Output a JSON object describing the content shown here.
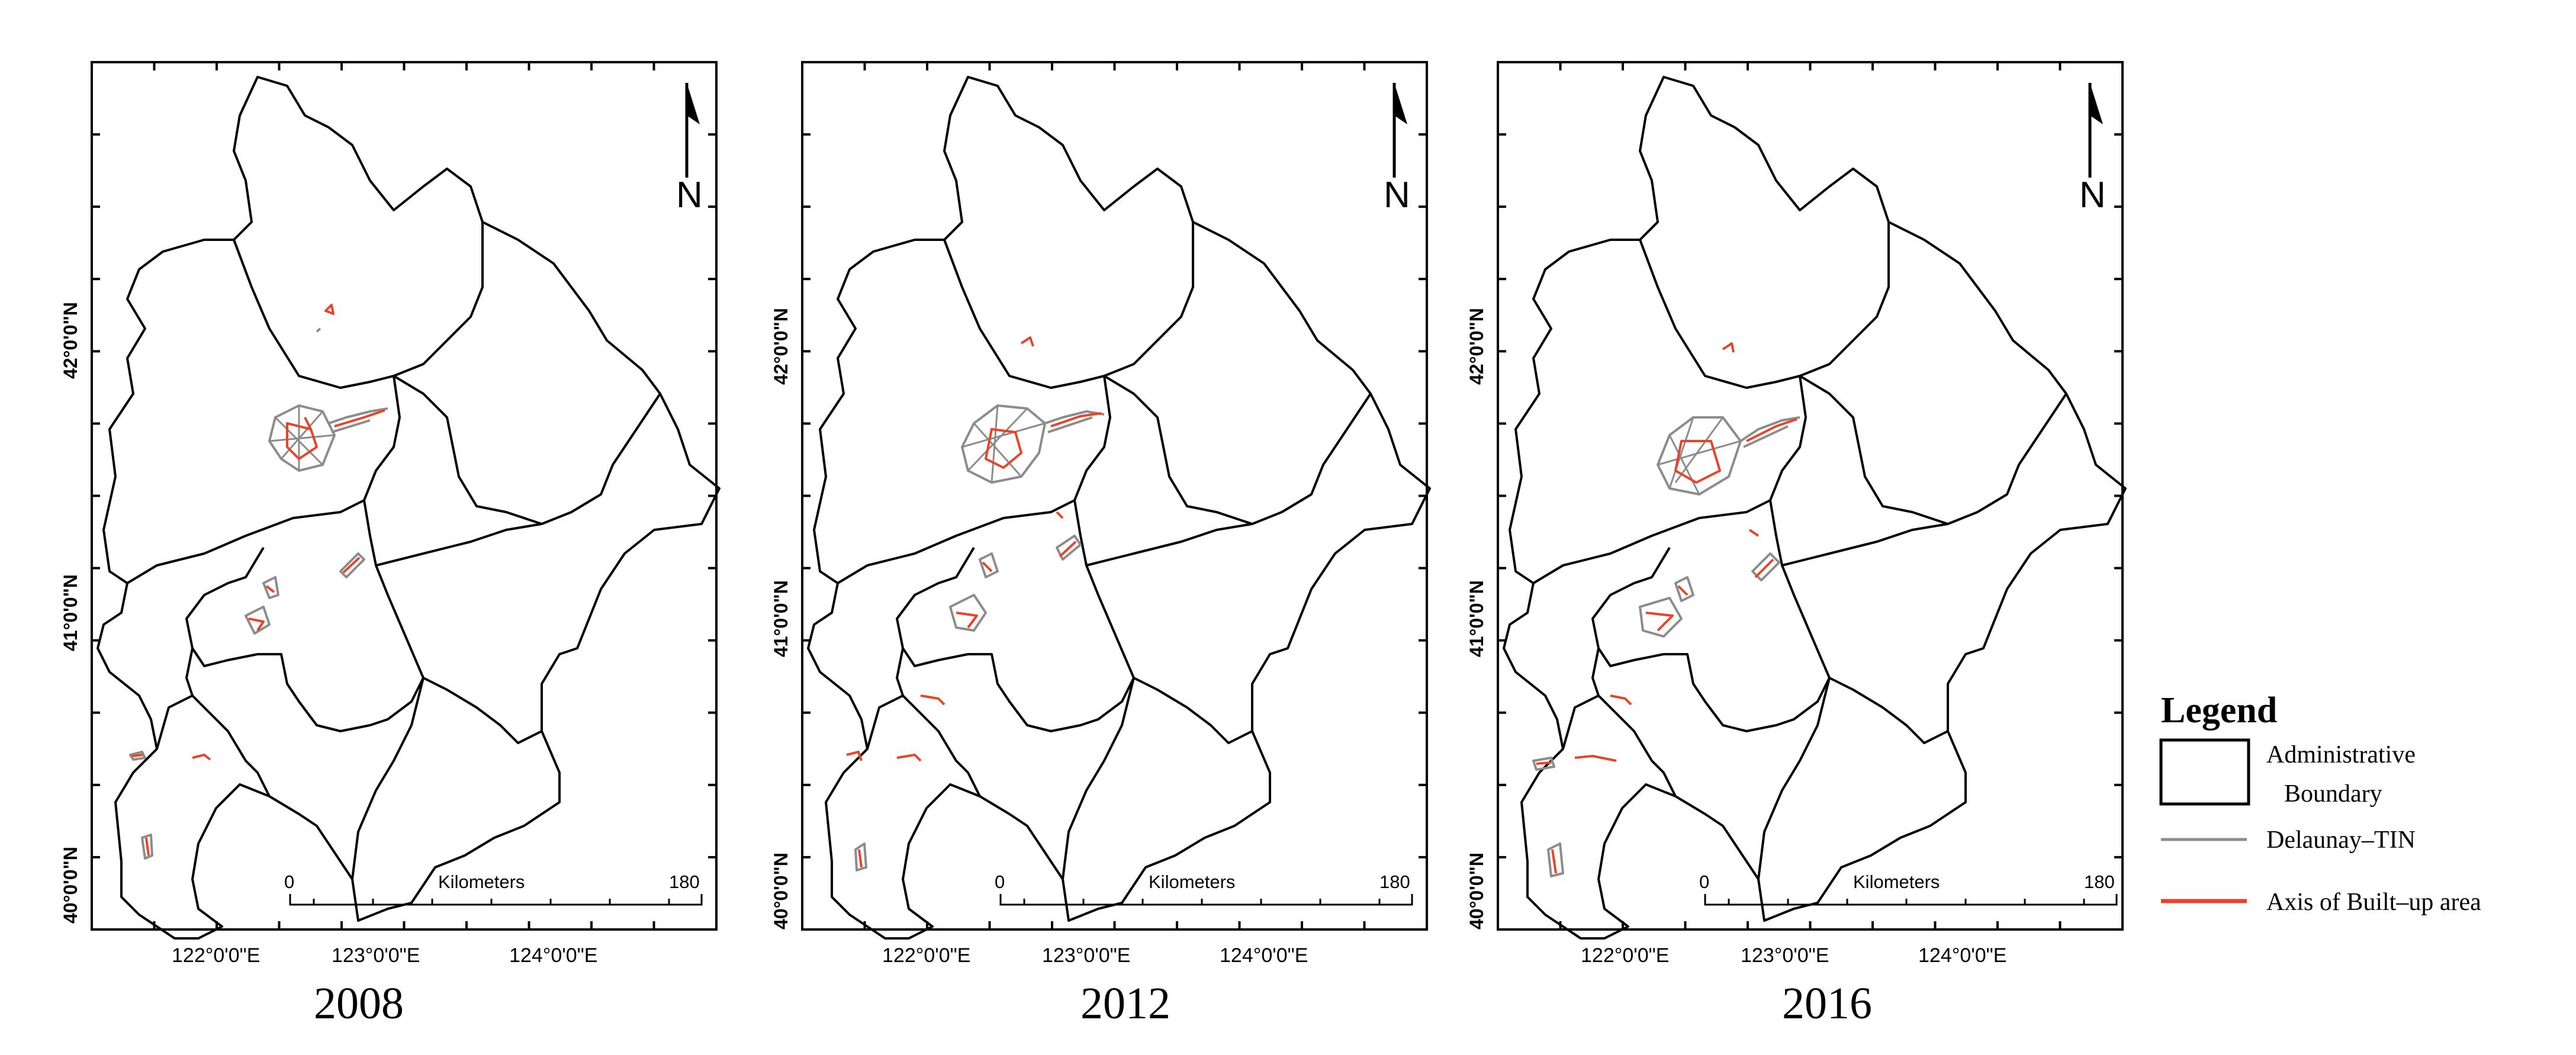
{
  "panels": [
    {
      "year": "2008"
    },
    {
      "year": "2012"
    },
    {
      "year": "2016"
    }
  ],
  "latitude_labels": [
    "42°0'0\"N",
    "41°0'0\"N",
    "40°0'0\"N"
  ],
  "longitude_labels": [
    "122°0'0\"E",
    "123°0'0\"E",
    "124°0'0\"E"
  ],
  "scale_bar": {
    "start": "0",
    "end": "180",
    "unit": "Kilometers"
  },
  "north_arrow": {
    "label": "N"
  },
  "legend": {
    "title": "Legend",
    "items": [
      {
        "label": "Administrative Boundary",
        "line1": "Administrative",
        "line2": "Boundary"
      },
      {
        "label": "Delaunay–TIN"
      },
      {
        "label": "Axis of Built–up area"
      }
    ]
  },
  "colors": {
    "boundary": "#000000",
    "tin": "#8c8c8c",
    "axis": "#e8442a"
  }
}
